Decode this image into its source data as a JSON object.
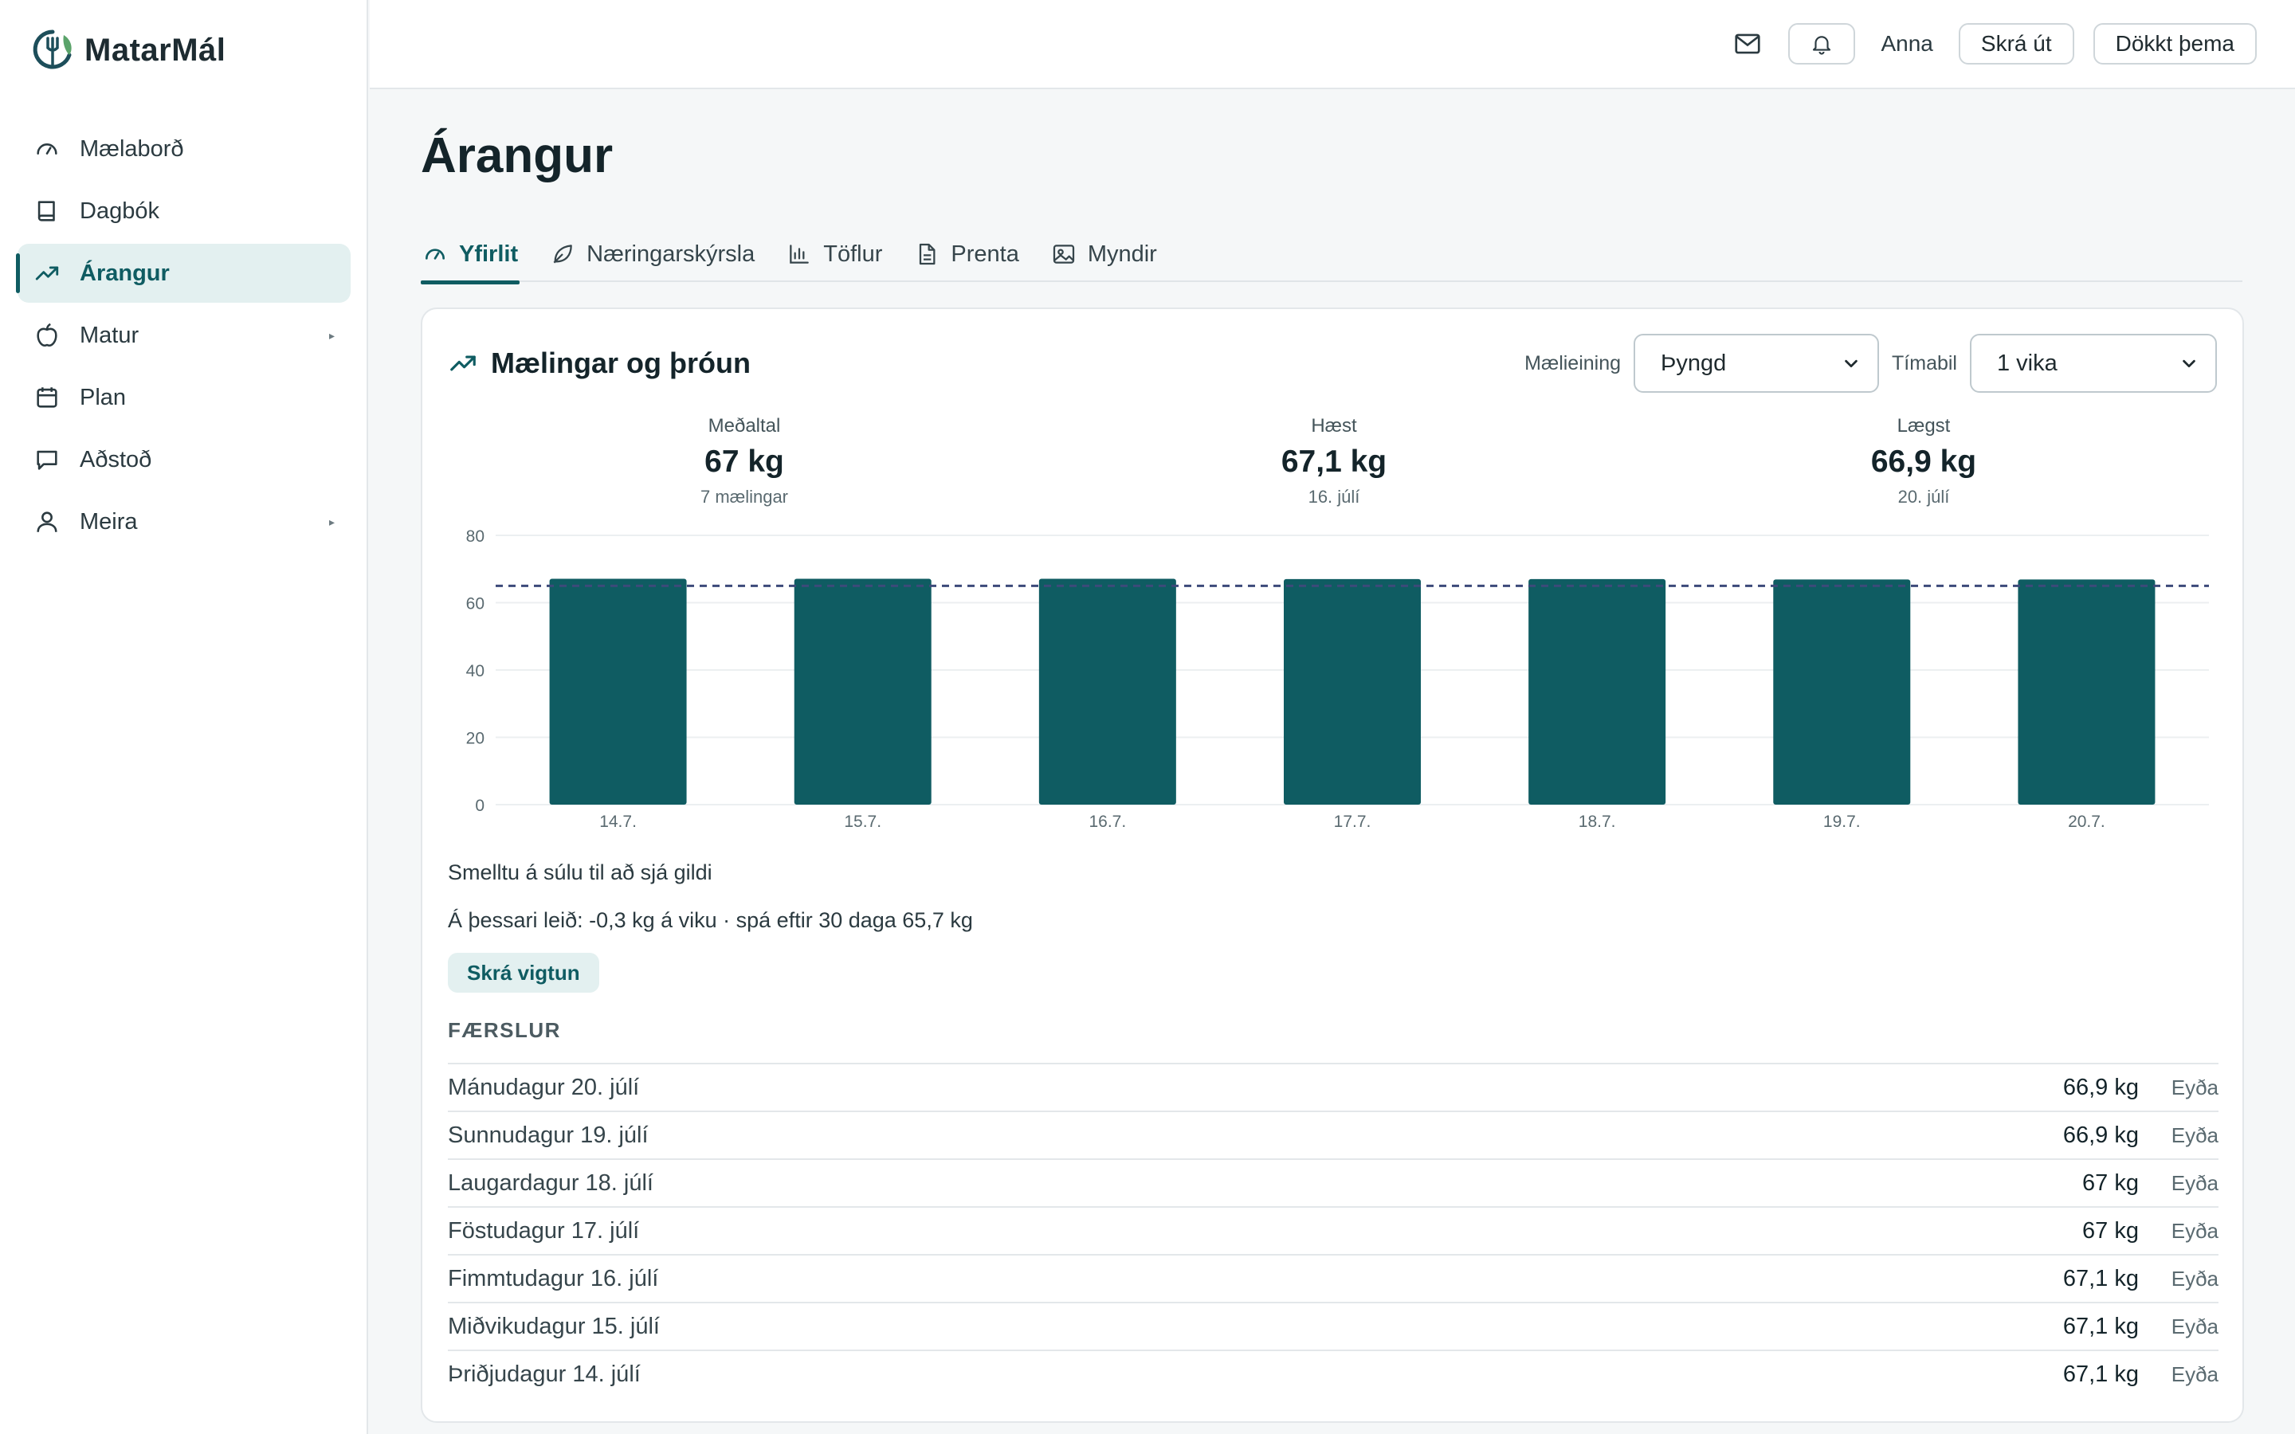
{
  "app": {
    "name": "MatarMál"
  },
  "sidebar": {
    "items": [
      {
        "label": "Mælaborð",
        "icon": "gauge-icon"
      },
      {
        "label": "Dagbók",
        "icon": "book-icon"
      },
      {
        "label": "Árangur",
        "icon": "trend-icon",
        "active": true
      },
      {
        "label": "Matur",
        "icon": "apple-icon",
        "caret": "▸"
      },
      {
        "label": "Plan",
        "icon": "calendar-icon"
      },
      {
        "label": "Aðstoð",
        "icon": "chat-icon"
      },
      {
        "label": "Meira",
        "icon": "user-icon",
        "caret": "▸"
      }
    ]
  },
  "topbar": {
    "user": "Anna",
    "logout": "Skrá út",
    "theme": "Dökkt þema"
  },
  "page": {
    "title": "Árangur"
  },
  "tabs": [
    {
      "label": "Yfirlit",
      "active": true
    },
    {
      "label": "Næringarskýrsla"
    },
    {
      "label": "Töflur"
    },
    {
      "label": "Prenta"
    },
    {
      "label": "Myndir"
    }
  ],
  "card": {
    "title": "Mælingar og þróun",
    "metric_label": "Mælieining",
    "metric_value": "Þyngd",
    "period_label": "Tímabil",
    "period_value": "1 vika"
  },
  "stats": {
    "avg": {
      "label": "Meðaltal",
      "value": "67 kg",
      "sub": "7 mælingar"
    },
    "max": {
      "label": "Hæst",
      "value": "67,1 kg",
      "sub": "16. júlí"
    },
    "min": {
      "label": "Lægst",
      "value": "66,9 kg",
      "sub": "20. júlí"
    }
  },
  "chart_data": {
    "type": "bar",
    "categories": [
      "14.7.",
      "15.7.",
      "16.7.",
      "17.7.",
      "18.7.",
      "19.7.",
      "20.7."
    ],
    "values": [
      67.1,
      67.1,
      67.1,
      67,
      67,
      66.9,
      66.9
    ],
    "ylim": [
      0,
      80
    ],
    "yticks": [
      0,
      20,
      40,
      60,
      80
    ],
    "reference_line": 65,
    "grid": true,
    "bar_color": "#0f5c62"
  },
  "hint": "Smelltu á súlu til að sjá gildi",
  "trend": "Á þessari leið: -0,3 kg á viku · spá eftir 30 daga 65,7 kg",
  "log_button": "Skrá vigtun",
  "entries": {
    "title": "FÆRSLUR",
    "delete_label": "Eyða",
    "rows": [
      {
        "date": "Mánudagur 20. júlí",
        "value": "66,9 kg"
      },
      {
        "date": "Sunnudagur 19. júlí",
        "value": "66,9 kg"
      },
      {
        "date": "Laugardagur 18. júlí",
        "value": "67 kg"
      },
      {
        "date": "Föstudagur 17. júlí",
        "value": "67 kg"
      },
      {
        "date": "Fimmtudagur 16. júlí",
        "value": "67,1 kg"
      },
      {
        "date": "Miðvikudagur 15. júlí",
        "value": "67,1 kg"
      },
      {
        "date": "Þriðjudagur 14. júlí",
        "value": "67,1 kg"
      }
    ]
  },
  "colors": {
    "accent": "#0f5c62",
    "accent_soft": "#e3f0f0",
    "reference_line": "#3d4a7a"
  }
}
